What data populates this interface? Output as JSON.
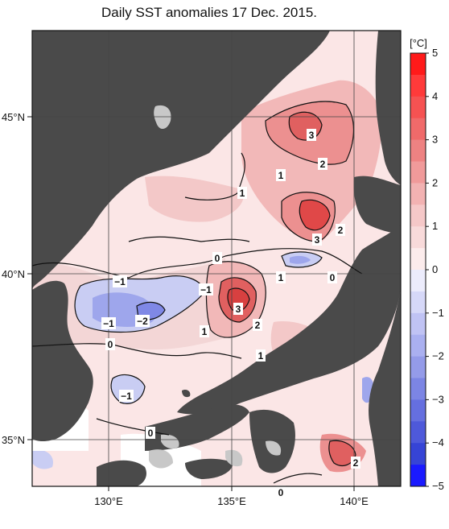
{
  "title": "Daily SST anomalies 17 Dec. 2015.",
  "colorbar": {
    "unit": "[°C]",
    "ticks": [
      "5",
      "4",
      "3",
      "2",
      "1",
      "0",
      "−1",
      "−2",
      "−3",
      "−4",
      "−5"
    ]
  },
  "axes": {
    "lon_labels": [
      "130°E",
      "135°E",
      "140°E"
    ],
    "lat_labels": [
      "45°N",
      "40°N",
      "35°N"
    ]
  },
  "contour_labels": [
    "3",
    "2",
    "1",
    "3",
    "2",
    "1",
    "0",
    "0",
    "1",
    "−1",
    "−1",
    "−1",
    "−2",
    "3",
    "2",
    "1",
    "1",
    "0",
    "−1",
    "0",
    "2",
    "0"
  ],
  "colors": {
    "land": "#4a4a4a",
    "land_light": "#c8c8c8",
    "warm_max": "#ff2020",
    "cold_max": "#1a1aff"
  }
}
